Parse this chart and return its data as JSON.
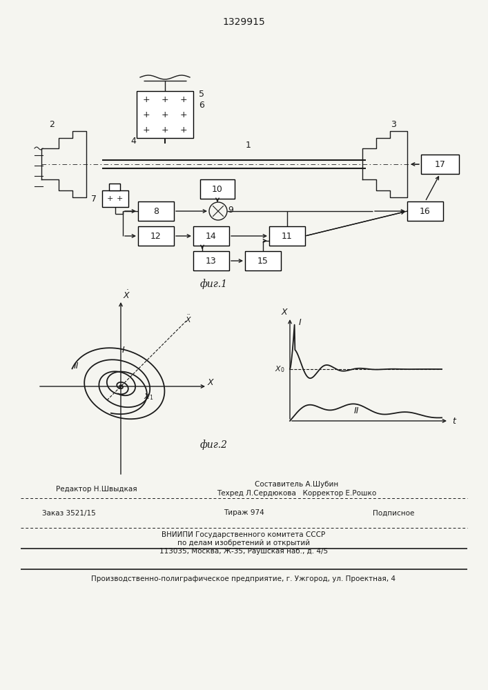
{
  "title": "1329915",
  "fig1_label": "фиг.1",
  "fig2_label": "фиг.2",
  "bg_color": "#f5f5f0",
  "line_color": "#1a1a1a",
  "footer_line1_left": "Редактор Н.Швыдкая",
  "footer_line1_center": "Составитель А.Шубин",
  "footer_line2_center": "Техред Л.Сердюкова   Корректор Е.Рошко",
  "footer_line3_left": "Заказ 3521/15",
  "footer_line3_center": "Тираж 974",
  "footer_line3_right": "Подписное",
  "footer_line4": "ВНИИПИ Государственного комитета СССР",
  "footer_line5": "по делам изобретений и открытий",
  "footer_line6": "113035, Москва, Ж-35, Раушская наб., д. 4/5",
  "footer_line7": "Производственно-полиграфическое предприятие, г. Ужгород, ул. Проектная, 4"
}
